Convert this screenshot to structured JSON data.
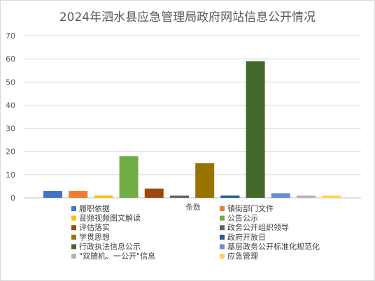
{
  "chart_data": {
    "type": "bar",
    "title": "2024年泗水县应急管理局政府网站信息公开情况",
    "xlabel": "条数",
    "ylabel": "",
    "ylim": [
      0,
      70
    ],
    "yticks": [
      0,
      10,
      20,
      30,
      40,
      50,
      60,
      70
    ],
    "grid": true,
    "legend_position": "bottom",
    "categories": [
      "条数"
    ],
    "series": [
      {
        "name": "履职依据",
        "values": [
          3
        ],
        "color": "#4472c4"
      },
      {
        "name": "镇街部门文件",
        "values": [
          3
        ],
        "color": "#ed7d31"
      },
      {
        "name": "音频视频图文解读",
        "values": [
          1
        ],
        "color": "#ffc000"
      },
      {
        "name": "公告公示",
        "values": [
          18
        ],
        "color": "#70ad47"
      },
      {
        "name": "评估落实",
        "values": [
          4
        ],
        "color": "#9e480e"
      },
      {
        "name": "政务公开组织领导",
        "values": [
          1
        ],
        "color": "#636363"
      },
      {
        "name": "学贯思想",
        "values": [
          15
        ],
        "color": "#997300"
      },
      {
        "name": "政府开放日",
        "values": [
          1
        ],
        "color": "#255e91"
      },
      {
        "name": "行政执法信息公示",
        "values": [
          59
        ],
        "color": "#43682b"
      },
      {
        "name": "基层政务公开标准化规范化",
        "values": [
          2
        ],
        "color": "#698ed0"
      },
      {
        "name": "\"双随机、一公开\"信息",
        "values": [
          1
        ],
        "color": "#b4b4b4"
      },
      {
        "name": "应急管理",
        "values": [
          1
        ],
        "color": "#ffd34d"
      }
    ]
  }
}
